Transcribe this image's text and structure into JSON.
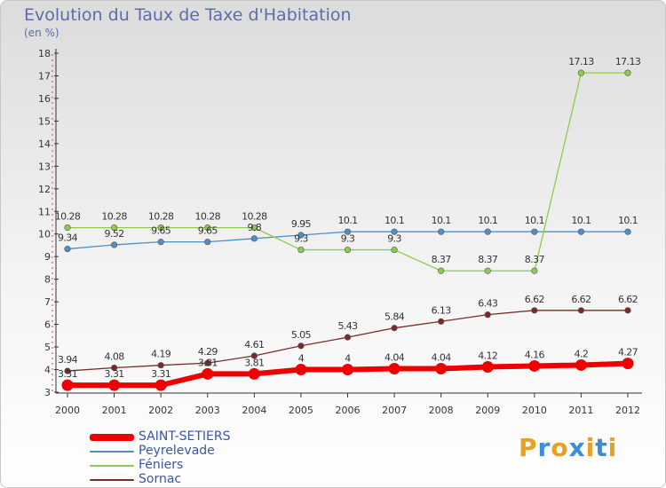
{
  "chart_data": {
    "type": "line",
    "title": "Evolution du Taux de Taxe d'Habitation",
    "subtitle": "(en %)",
    "x": [
      "2000",
      "2001",
      "2002",
      "2003",
      "2004",
      "2005",
      "2006",
      "2007",
      "2008",
      "2009",
      "2010",
      "2011",
      "2012"
    ],
    "y_ticks": [
      "3",
      "4",
      "5",
      "6",
      "7",
      "8",
      "9",
      "10",
      "11",
      "12",
      "13",
      "14",
      "15",
      "16",
      "17",
      "18"
    ],
    "ylim": [
      3,
      18
    ],
    "grid": false,
    "legend_position": "bottom-left",
    "series": [
      {
        "name": "SAINT-SETIERS",
        "color": "#ee0000",
        "values": [
          3.31,
          3.31,
          3.31,
          3.81,
          3.81,
          4,
          4,
          4.04,
          4.04,
          4.12,
          4.16,
          4.2,
          4.27
        ],
        "labels": [
          "3.31",
          "3.31",
          "3.31",
          "3.81",
          "3.81",
          "4",
          "4",
          "4.04",
          "4.04",
          "4.12",
          "4.16",
          "4.2",
          "4.27"
        ]
      },
      {
        "name": "Peyrelevade",
        "color": "#4f8fc6",
        "values": [
          9.34,
          9.52,
          9.65,
          9.65,
          9.8,
          9.95,
          10.1,
          10.1,
          10.1,
          10.1,
          10.1,
          10.1,
          10.1
        ],
        "labels": [
          "9.34",
          "9.52",
          "9.65",
          "9.65",
          "9.8",
          "9.95",
          "10.1",
          "10.1",
          "10.1",
          "10.1",
          "10.1",
          "10.1",
          "10.1"
        ]
      },
      {
        "name": "Féniers",
        "color": "#8ccd4a",
        "values": [
          10.28,
          10.28,
          10.28,
          10.28,
          10.28,
          9.3,
          9.3,
          9.3,
          8.37,
          8.37,
          8.37,
          17.13,
          17.13
        ],
        "labels": [
          "10.28",
          "10.28",
          "10.28",
          "10.28",
          "10.28",
          "9.3",
          "9.3",
          "9.3",
          "8.37",
          "8.37",
          "8.37",
          "17.13",
          "17.13"
        ]
      },
      {
        "name": "Sornac",
        "color": "#7a2a2a",
        "values": [
          3.94,
          4.08,
          4.19,
          4.29,
          4.61,
          5.05,
          5.43,
          5.84,
          6.13,
          6.43,
          6.62,
          6.62,
          6.62
        ],
        "labels": [
          "3.94",
          "4.08",
          "4.19",
          "4.29",
          "4.61",
          "5.05",
          "5.43",
          "5.84",
          "6.13",
          "6.43",
          "6.62",
          "6.62",
          "6.62"
        ]
      }
    ]
  },
  "logo": {
    "text": "Proxiti",
    "letters": [
      "P",
      "r",
      "o",
      "x",
      "i",
      "t",
      "i"
    ],
    "colors": [
      "#e8a020",
      "#3b8ed6",
      "#e8a020",
      "#3b8ed6",
      "#e8a020",
      "#3b8ed6",
      "#e8a020"
    ]
  }
}
